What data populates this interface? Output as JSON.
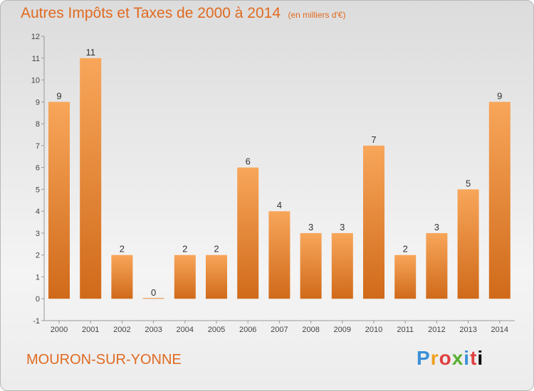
{
  "chart_data": {
    "type": "bar",
    "title": "Autres Impôts et Taxes de 2000 à 2014",
    "unit": "(en milliers d'€)",
    "categories": [
      "2000",
      "2001",
      "2002",
      "2003",
      "2004",
      "2005",
      "2006",
      "2007",
      "2008",
      "2009",
      "2010",
      "2011",
      "2012",
      "2013",
      "2014"
    ],
    "values": [
      9,
      11,
      2,
      0,
      2,
      2,
      6,
      4,
      3,
      3,
      7,
      2,
      3,
      5,
      9
    ],
    "ylim": [
      -1,
      12
    ],
    "yticks": [
      -1,
      0,
      1,
      2,
      3,
      4,
      5,
      6,
      7,
      8,
      9,
      10,
      11,
      12
    ],
    "grid": false,
    "bar_color": "#f0923c"
  },
  "footer": {
    "city": "MOURON-SUR-YONNE",
    "brand": [
      "P",
      "r",
      "o",
      "x",
      "i",
      "t",
      "i"
    ]
  }
}
